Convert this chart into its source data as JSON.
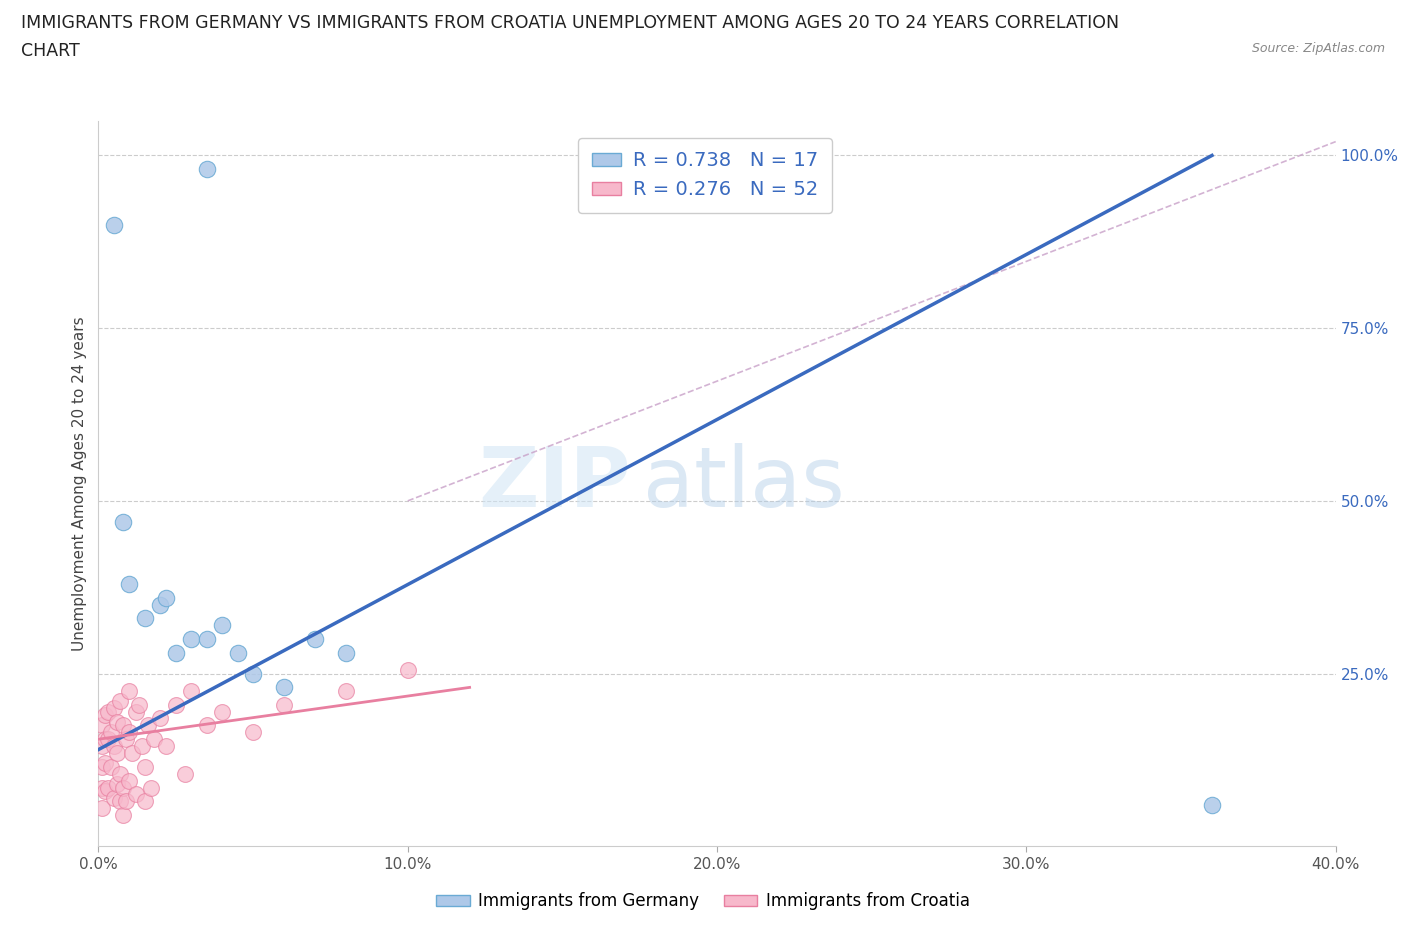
{
  "title_line1": "IMMIGRANTS FROM GERMANY VS IMMIGRANTS FROM CROATIA UNEMPLOYMENT AMONG AGES 20 TO 24 YEARS CORRELATION",
  "title_line2": "CHART",
  "source": "Source: ZipAtlas.com",
  "ylabel": "Unemployment Among Ages 20 to 24 years",
  "xlim": [
    0.0,
    0.4
  ],
  "ylim": [
    0.0,
    1.05
  ],
  "xtick_labels": [
    "0.0%",
    "10.0%",
    "20.0%",
    "30.0%",
    "40.0%"
  ],
  "xtick_values": [
    0.0,
    0.1,
    0.2,
    0.3,
    0.4
  ],
  "ytick_labels": [
    "25.0%",
    "50.0%",
    "75.0%",
    "100.0%"
  ],
  "ytick_values": [
    0.25,
    0.5,
    0.75,
    1.0
  ],
  "germany_color": "#aec8e8",
  "germany_color_edge": "#6aaad4",
  "croatia_color": "#f7b8cb",
  "croatia_color_edge": "#e87fa0",
  "blue_line_color": "#3a6abf",
  "pink_line_color": "#e87fa0",
  "ref_line_color": "#c8a0c8",
  "watermark_zip": "ZIP",
  "watermark_atlas": "atlas",
  "legend_R_germany": "R = 0.738",
  "legend_N_germany": "N = 17",
  "legend_R_croatia": "R = 0.276",
  "legend_N_croatia": "N = 52",
  "germany_scatter_x": [
    0.005,
    0.008,
    0.01,
    0.015,
    0.02,
    0.022,
    0.025,
    0.03,
    0.035,
    0.04,
    0.045,
    0.05,
    0.06,
    0.07,
    0.08,
    0.035,
    0.36
  ],
  "germany_scatter_y": [
    0.9,
    0.47,
    0.38,
    0.33,
    0.35,
    0.36,
    0.28,
    0.3,
    0.3,
    0.32,
    0.28,
    0.25,
    0.23,
    0.3,
    0.28,
    0.98,
    0.06
  ],
  "croatia_scatter_x": [
    0.001,
    0.001,
    0.001,
    0.001,
    0.001,
    0.002,
    0.002,
    0.002,
    0.002,
    0.003,
    0.003,
    0.003,
    0.004,
    0.004,
    0.005,
    0.005,
    0.005,
    0.006,
    0.006,
    0.006,
    0.007,
    0.007,
    0.007,
    0.008,
    0.008,
    0.008,
    0.009,
    0.009,
    0.01,
    0.01,
    0.01,
    0.011,
    0.012,
    0.012,
    0.013,
    0.014,
    0.015,
    0.015,
    0.016,
    0.017,
    0.018,
    0.02,
    0.022,
    0.025,
    0.028,
    0.03,
    0.035,
    0.04,
    0.05,
    0.06,
    0.08,
    0.1
  ],
  "croatia_scatter_y": [
    0.175,
    0.145,
    0.115,
    0.085,
    0.055,
    0.19,
    0.155,
    0.12,
    0.08,
    0.195,
    0.155,
    0.085,
    0.165,
    0.115,
    0.2,
    0.145,
    0.07,
    0.18,
    0.135,
    0.09,
    0.21,
    0.105,
    0.065,
    0.175,
    0.085,
    0.045,
    0.155,
    0.065,
    0.225,
    0.165,
    0.095,
    0.135,
    0.195,
    0.075,
    0.205,
    0.145,
    0.115,
    0.065,
    0.175,
    0.085,
    0.155,
    0.185,
    0.145,
    0.205,
    0.105,
    0.225,
    0.175,
    0.195,
    0.165,
    0.205,
    0.225,
    0.255
  ],
  "germany_line_x": [
    0.0,
    0.36
  ],
  "germany_line_y": [
    0.14,
    1.0
  ],
  "croatia_reg_line_x": [
    0.0,
    0.12
  ],
  "croatia_reg_line_y": [
    0.155,
    0.23
  ],
  "ref_line_x": [
    0.1,
    0.4
  ],
  "ref_line_y": [
    0.5,
    1.02
  ],
  "background_color": "#ffffff",
  "grid_color": "#cccccc"
}
